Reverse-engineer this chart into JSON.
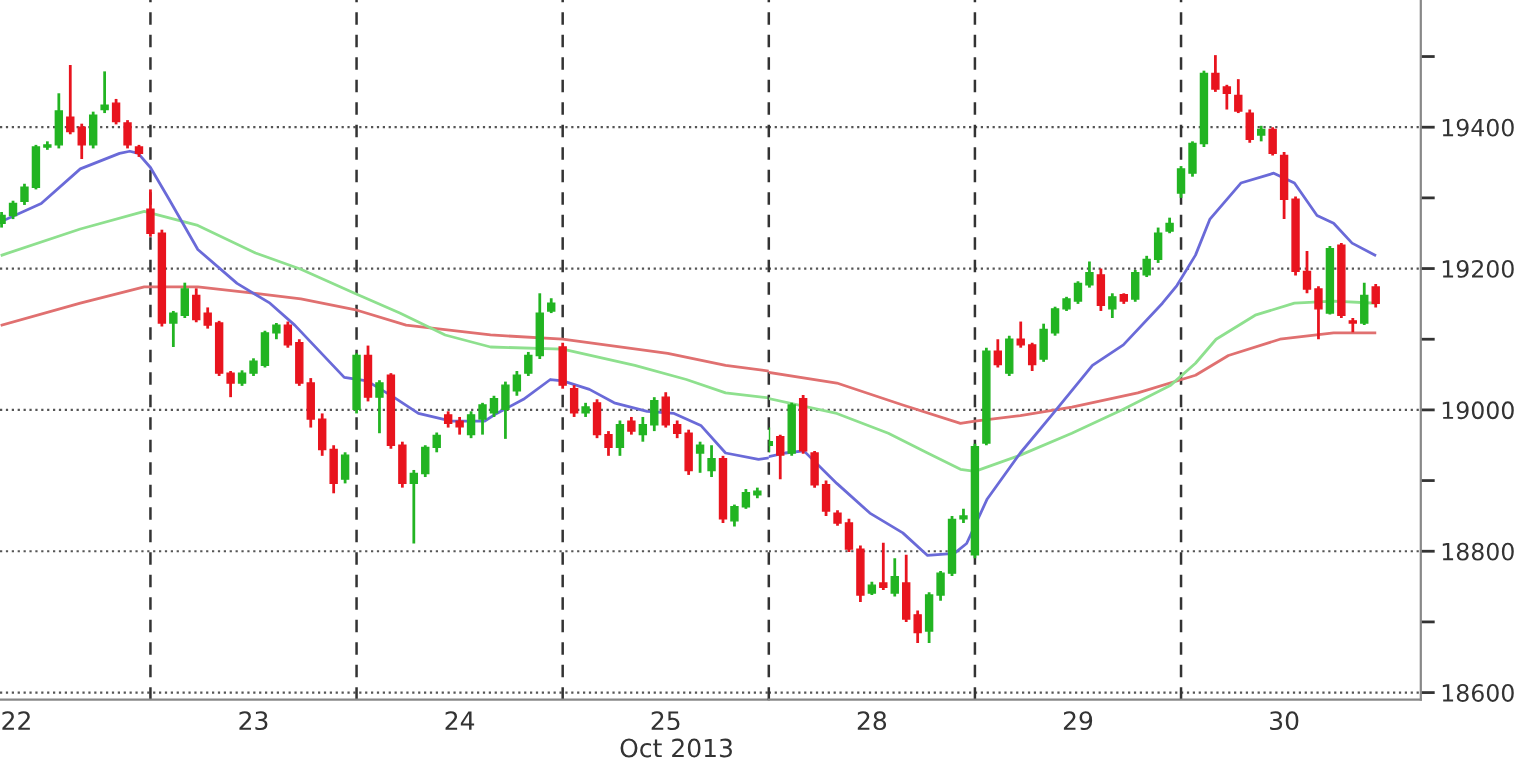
{
  "chart_data": [
    {
      "type": "candlestick",
      "xlabel": "Oct 2013",
      "xlim": [
        "2013-10-22T06:29",
        "2013-10-26T00:00"
      ],
      "ylim": [
        18590,
        19580
      ],
      "xticks": [
        {
          "value": "2013-10-22T08:24",
          "label": "22"
        },
        {
          "value": "2013-10-23T12:00",
          "label": "23"
        },
        {
          "value": "2013-10-24T12:00",
          "label": "24"
        },
        {
          "value": "2013-10-25T12:00",
          "label": "25"
        }
      ],
      "yticks": [
        18600,
        18800,
        19000,
        19200,
        19400
      ],
      "tick_labels": "x",
      "grid": "y",
      "ref_lines": [
        {
          "axis": "x",
          "value": "2013-10-23",
          "color": "#333333",
          "line_style": "dashed"
        },
        {
          "axis": "x",
          "value": "2013-10-24",
          "color": "#333333",
          "line_style": "dashed"
        },
        {
          "axis": "x",
          "value": "2013-10-25",
          "color": "#333333",
          "line_style": "dashed"
        }
      ],
      "series": [
        {
          "type": "line",
          "color": "#e07070",
          "x": [
            "2013-10-22T06:43",
            "2013-10-22T15:50",
            "2013-10-22T23:17",
            "2013-10-23T05:31",
            "2013-10-23T12:14",
            "2013-10-23T17:31",
            "2013-10-23T23:46",
            "2013-10-24T05:46",
            "2013-10-24T15:36",
            "2013-10-25T00:00",
            "2013-10-25T12:14",
            "2013-10-25T18:58",
            "2013-10-26T00:00"
          ],
          "values": [
            19120,
            19151,
            19174,
            19174,
            19165,
            19157,
            19142,
            19120,
            19106,
            19100,
            19080,
            19063,
            19055
          ]
        },
        {
          "type": "line",
          "color": "#8ee08e",
          "x": [
            "2013-10-22T06:43",
            "2013-10-22T15:50",
            "2013-10-22T23:17",
            "2013-10-23T05:31",
            "2013-10-23T12:14",
            "2013-10-23T17:31",
            "2013-10-23T23:46",
            "2013-10-24T05:02",
            "2013-10-24T10:19",
            "2013-10-24T15:36",
            "2013-10-25T00:00",
            "2013-10-25T08:24",
            "2013-10-25T14:24",
            "2013-10-25T18:58",
            "2013-10-26T00:00"
          ],
          "values": [
            19219,
            19256,
            19281,
            19261,
            19222,
            19199,
            19165,
            19137,
            19106,
            19089,
            19086,
            19063,
            19043,
            19024,
            19017
          ]
        },
        {
          "type": "line",
          "color": "#6a6ad8",
          "x": [
            "2013-10-22T06:43",
            "2013-10-22T11:17",
            "2013-10-22T15:50",
            "2013-10-22T20:24",
            "2013-10-22T21:36",
            "2013-10-22T22:34",
            "2013-10-23T00:00",
            "2013-10-23T02:10",
            "2013-10-23T05:31",
            "2013-10-23T10:05",
            "2013-10-23T13:55",
            "2013-10-23T16:48",
            "2013-10-23T19:55",
            "2013-10-23T22:34",
            "2013-10-24T01:12",
            "2013-10-24T04:19",
            "2013-10-24T07:12",
            "2013-10-24T11:02",
            "2013-10-24T14:53",
            "2013-10-24T16:19",
            "2013-10-24T19:26",
            "2013-10-24T22:34",
            "2013-10-25T00:00",
            "2013-10-25T03:07",
            "2013-10-25T06:00",
            "2013-10-25T09:50",
            "2013-10-25T12:58",
            "2013-10-25T16:05",
            "2013-10-25T18:58",
            "2013-10-25T22:48",
            "2013-10-26T00:00"
          ],
          "values": [
            19267,
            19292,
            19341,
            19363,
            19366,
            19363,
            19343,
            19298,
            19227,
            19179,
            19151,
            19120,
            19080,
            19046,
            19041,
            19018,
            18995,
            18984,
            18984,
            18995,
            19015,
            19043,
            19041,
            19029,
            19010,
            18998,
            18995,
            18978,
            18939,
            18930,
            18932
          ]
        },
        {
          "color": "#22b422",
          "x": [
            "2013-10-22T06:40",
            "2013-10-22T08:00",
            "2013-10-22T09:20",
            "2013-10-22T10:40",
            "2013-10-22T12:00",
            "2013-10-22T13:20",
            "2013-10-22T17:20",
            "2013-10-22T18:40",
            "2013-10-23T02:40",
            "2013-10-23T04:00",
            "2013-10-23T10:40",
            "2013-10-23T12:00",
            "2013-10-23T13:20",
            "2013-10-23T14:40",
            "2013-10-23T22:40",
            "2013-10-24T00:00",
            "2013-10-24T02:40",
            "2013-10-24T06:40",
            "2013-10-24T08:00",
            "2013-10-24T09:20",
            "2013-10-24T13:20",
            "2013-10-24T14:40",
            "2013-10-24T16:00",
            "2013-10-24T17:20",
            "2013-10-24T18:40",
            "2013-10-24T20:00",
            "2013-10-24T21:20",
            "2013-10-24T22:40",
            "2013-10-25T02:40",
            "2013-10-25T06:40",
            "2013-10-25T09:20",
            "2013-10-25T10:40",
            "2013-10-25T16:00",
            "2013-10-25T17:20",
            "2013-10-25T20:00",
            "2013-10-25T21:20",
            "2013-10-25T22:40"
          ],
          "ohlc": [
            [
              19264,
              19280,
              19258,
              19275
            ],
            [
              19275,
              19296,
              19270,
              19292
            ],
            [
              19295,
              19320,
              19290,
              19315
            ],
            [
              19315,
              19375,
              19312,
              19372
            ],
            [
              19372,
              19380,
              19368,
              19375
            ],
            [
              19375,
              19448,
              19370,
              19423
            ],
            [
              19375,
              19422,
              19370,
              19417
            ],
            [
              19425,
              19479,
              19420,
              19431
            ],
            [
              19123,
              19140,
              19089,
              19137
            ],
            [
              19134,
              19180,
              19130,
              19171
            ],
            [
              19038,
              19056,
              19034,
              19052
            ],
            [
              19052,
              19073,
              19048,
              19069
            ],
            [
              19063,
              19112,
              19060,
              19109
            ],
            [
              19109,
              19123,
              19100,
              19120
            ],
            [
              18902,
              18940,
              18896,
              18936
            ],
            [
              19001,
              19080,
              18995,
              19077
            ],
            [
              19018,
              19042,
              18967,
              19038
            ],
            [
              18896,
              18915,
              18811,
              18910
            ],
            [
              18910,
              18950,
              18905,
              18947
            ],
            [
              18947,
              18968,
              18940,
              18964
            ],
            [
              18965,
              18998,
              18960,
              18993
            ],
            [
              18987,
              19010,
              18965,
              19007
            ],
            [
              18996,
              19020,
              18990,
              19016
            ],
            [
              19001,
              19040,
              18959,
              19035
            ],
            [
              19027,
              19055,
              19020,
              19049
            ],
            [
              19052,
              19082,
              19048,
              19077
            ],
            [
              19077,
              19165,
              19072,
              19137
            ],
            [
              19140,
              19158,
              19137,
              19151
            ],
            [
              18996,
              19010,
              18990,
              19004
            ],
            [
              18947,
              18985,
              18935,
              18979
            ],
            [
              18965,
              18990,
              18955,
              18979
            ],
            [
              18979,
              19018,
              18970,
              19013
            ],
            [
              18939,
              18955,
              18911,
              18950
            ],
            [
              18914,
              18950,
              18905,
              18931
            ],
            [
              18843,
              18866,
              18835,
              18863
            ],
            [
              18863,
              18888,
              18860,
              18883
            ],
            [
              18880,
              18890,
              18875,
              18885
            ]
          ]
        },
        {
          "color": "#e8141e",
          "x": [
            "2013-10-22T14:40",
            "2013-10-22T16:00",
            "2013-10-22T20:00",
            "2013-10-22T21:20",
            "2013-10-22T22:40",
            "2013-10-23T00:00",
            "2013-10-23T01:20",
            "2013-10-23T05:20",
            "2013-10-23T06:40",
            "2013-10-23T08:00",
            "2013-10-23T09:20",
            "2013-10-23T16:00",
            "2013-10-23T17:20",
            "2013-10-23T18:40",
            "2013-10-23T20:00",
            "2013-10-23T21:20",
            "2013-10-24T01:20",
            "2013-10-24T04:00",
            "2013-10-24T05:20",
            "2013-10-24T10:40",
            "2013-10-24T12:00",
            "2013-10-25T00:00",
            "2013-10-25T01:20",
            "2013-10-25T04:00",
            "2013-10-25T05:20",
            "2013-10-25T08:00",
            "2013-10-25T12:00",
            "2013-10-25T13:20",
            "2013-10-25T14:40",
            "2013-10-25T18:40"
          ],
          "ohlc": [
            [
              19414,
              19488,
              19390,
              19394
            ],
            [
              19400,
              19405,
              19355,
              19375
            ],
            [
              19434,
              19440,
              19404,
              19408
            ],
            [
              19406,
              19410,
              19370,
              19375
            ],
            [
              19372,
              19375,
              19358,
              19363
            ],
            [
              19284,
              19312,
              19245,
              19250
            ],
            [
              19250,
              19255,
              19118,
              19123
            ],
            [
              19162,
              19172,
              19124,
              19128
            ],
            [
              19137,
              19145,
              19115,
              19120
            ],
            [
              19123,
              19126,
              19048,
              19052
            ],
            [
              19052,
              19055,
              19018,
              19038
            ],
            [
              19120,
              19125,
              19088,
              19092
            ],
            [
              19095,
              19100,
              19034,
              19038
            ],
            [
              19038,
              19045,
              18975,
              18987
            ],
            [
              18987,
              18995,
              18935,
              18944
            ],
            [
              18944,
              18950,
              18882,
              18896
            ],
            [
              19077,
              19091,
              19012,
              19018
            ],
            [
              19049,
              19052,
              18945,
              18950
            ],
            [
              18950,
              18955,
              18890,
              18896
            ],
            [
              18993,
              18998,
              18975,
              18981
            ],
            [
              18984,
              18990,
              18965,
              18976
            ],
            [
              19089,
              19095,
              19030,
              19035
            ],
            [
              19030,
              19035,
              18990,
              18996
            ],
            [
              19010,
              19015,
              18960,
              18965
            ],
            [
              18965,
              18970,
              18935,
              18947
            ],
            [
              18984,
              18990,
              18965,
              18970
            ],
            [
              19018,
              19025,
              18975,
              18979
            ],
            [
              18979,
              18985,
              18960,
              18967
            ],
            [
              18967,
              18972,
              18908,
              18914
            ],
            [
              18931,
              18935,
              18840,
              18846
            ]
          ]
        }
      ]
    },
    {
      "type": "candlestick",
      "xlim": [
        "2013-10-28T00:00",
        "2013-10-31T03:55"
      ],
      "ylim": [
        18590,
        19580
      ],
      "xticks": [
        {
          "value": "2013-10-28T12:00",
          "label": "28"
        },
        {
          "value": "2013-10-29T12:00",
          "label": "29"
        },
        {
          "value": "2013-10-30T12:00",
          "label": "30"
        }
      ],
      "yticks": [
        18600,
        {
          "value": 18700,
          "label": null
        },
        18800,
        {
          "value": 18900,
          "label": null
        },
        19000,
        {
          "value": 19100,
          "label": null
        },
        19200,
        {
          "value": 19300,
          "label": null
        },
        19400,
        {
          "value": 19500,
          "label": null
        }
      ],
      "grid": "y",
      "ref_lines": [
        {
          "axis": "x",
          "value": "2013-10-28",
          "color": "#333333",
          "line_style": "dashed"
        },
        {
          "axis": "x",
          "value": "2013-10-29",
          "color": "#333333",
          "line_style": "dashed"
        },
        {
          "axis": "x",
          "value": "2013-10-30",
          "color": "#333333",
          "line_style": "dashed"
        }
      ],
      "series": [
        {
          "type": "line",
          "color": "#e07070",
          "x": [
            "2013-10-28T00:00",
            "2013-10-28T07:55",
            "2013-10-28T15:36",
            "2013-10-28T22:19",
            "2013-10-29T00:00",
            "2013-10-29T05:17",
            "2013-10-29T11:17",
            "2013-10-29T18:58",
            "2013-10-30T01:41",
            "2013-10-30T05:31",
            "2013-10-30T11:31",
            "2013-10-30T17:46",
            "2013-10-30T22:34"
          ],
          "values": [
            19053,
            19038,
            19007,
            18981,
            18984,
            18992,
            19004,
            19024,
            19049,
            19077,
            19100,
            19109,
            19109
          ]
        },
        {
          "type": "line",
          "color": "#8ee08e",
          "x": [
            "2013-10-28T00:00",
            "2013-10-28T07:55",
            "2013-10-28T13:55",
            "2013-10-28T18:29",
            "2013-10-28T22:19",
            "2013-10-29T00:00",
            "2013-10-29T05:17",
            "2013-10-29T11:17",
            "2013-10-29T17:17",
            "2013-10-29T22:48",
            "2013-10-30T01:41",
            "2013-10-30T04:05",
            "2013-10-30T08:38",
            "2013-10-30T13:12",
            "2013-10-30T17:46",
            "2013-10-30T22:34"
          ],
          "values": [
            19016,
            18995,
            18967,
            18939,
            18916,
            18913,
            18936,
            18967,
            19001,
            19035,
            19066,
            19100,
            19134,
            19151,
            19154,
            19151
          ]
        },
        {
          "type": "line",
          "color": "#6a6ad8",
          "x": [
            "2013-10-28T00:00",
            "2013-10-28T01:55",
            "2013-10-28T04:05",
            "2013-10-28T07:55",
            "2013-10-28T11:46",
            "2013-10-28T15:36",
            "2013-10-28T18:29",
            "2013-10-28T21:36",
            "2013-10-28T23:02",
            "2013-10-29T01:26",
            "2013-10-29T05:17",
            "2013-10-29T09:07",
            "2013-10-29T13:41",
            "2013-10-29T17:17",
            "2013-10-29T21:50",
            "2013-10-29T23:31",
            "2013-10-30T01:41",
            "2013-10-30T03:22",
            "2013-10-30T06:58",
            "2013-10-30T10:48",
            "2013-10-30T13:12",
            "2013-10-30T15:50",
            "2013-10-30T17:46",
            "2013-10-30T19:55",
            "2013-10-30T22:34"
          ],
          "values": [
            18934,
            18939,
            18942,
            18896,
            18854,
            18826,
            18794,
            18797,
            18811,
            18874,
            18939,
            18995,
            19063,
            19092,
            19151,
            19176,
            19219,
            19270,
            19321,
            19335,
            19321,
            19275,
            19264,
            19236,
            19219
          ]
        },
        {
          "color": "#22b422",
          "x": [
            "2013-10-28T00:00",
            "2013-10-28T02:40",
            "2013-10-28T12:00",
            "2013-10-28T14:40",
            "2013-10-28T18:40",
            "2013-10-28T20:00",
            "2013-10-28T21:20",
            "2013-10-28T22:40",
            "2013-10-29T00:00",
            "2013-10-29T01:20",
            "2013-10-29T04:00",
            "2013-10-29T08:00",
            "2013-10-29T09:20",
            "2013-10-29T10:40",
            "2013-10-29T12:00",
            "2013-10-29T13:20",
            "2013-10-29T16:00",
            "2013-10-29T18:40",
            "2013-10-29T20:00",
            "2013-10-29T21:20",
            "2013-10-29T22:40",
            "2013-10-30T00:00",
            "2013-10-30T01:20",
            "2013-10-30T02:40",
            "2013-10-30T09:20",
            "2013-10-30T17:20",
            "2013-10-30T21:20"
          ],
          "ohlc": [
            [
              18950,
              18975,
              18940,
              18955
            ],
            [
              18939,
              19010,
              18935,
              19007
            ],
            [
              18741,
              18757,
              18738,
              18752
            ],
            [
              18741,
              18790,
              18736,
              18764
            ],
            [
              18687,
              18742,
              18670,
              18738
            ],
            [
              18738,
              18772,
              18730,
              18769
            ],
            [
              18769,
              18850,
              18765,
              18845
            ],
            [
              18846,
              18860,
              18840,
              18850
            ],
            [
              18795,
              18952,
              18790,
              18948
            ],
            [
              18953,
              19088,
              18950,
              19083
            ],
            [
              19052,
              19105,
              19048,
              19100
            ],
            [
              19072,
              19122,
              19068,
              19114
            ],
            [
              19109,
              19146,
              19105,
              19143
            ],
            [
              19143,
              19160,
              19140,
              19157
            ],
            [
              19154,
              19182,
              19150,
              19179
            ],
            [
              19177,
              19210,
              19173,
              19194
            ],
            [
              19143,
              19165,
              19130,
              19160
            ],
            [
              19157,
              19198,
              19153,
              19194
            ],
            [
              19191,
              19218,
              19188,
              19213
            ],
            [
              19213,
              19258,
              19208,
              19250
            ],
            [
              19253,
              19272,
              19250,
              19264
            ],
            [
              19307,
              19345,
              19300,
              19341
            ],
            [
              19335,
              19380,
              19330,
              19377
            ],
            [
              19377,
              19480,
              19372,
              19476
            ],
            [
              19389,
              19402,
              19380,
              19397
            ],
            [
              19137,
              19232,
              19135,
              19228
            ],
            [
              19123,
              19180,
              19120,
              19162
            ]
          ]
        },
        {
          "color": "#e8141e",
          "x": [
            "2013-10-28T01:20",
            "2013-10-28T04:00",
            "2013-10-28T05:20",
            "2013-10-28T06:40",
            "2013-10-28T08:00",
            "2013-10-28T09:20",
            "2013-10-28T10:40",
            "2013-10-28T13:20",
            "2013-10-28T16:00",
            "2013-10-28T17:20",
            "2013-10-29T02:40",
            "2013-10-29T05:20",
            "2013-10-29T06:40",
            "2013-10-29T14:40",
            "2013-10-29T17:20",
            "2013-10-30T04:00",
            "2013-10-30T05:20",
            "2013-10-30T06:40",
            "2013-10-30T08:00",
            "2013-10-30T10:40",
            "2013-10-30T12:00",
            "2013-10-30T13:20",
            "2013-10-30T14:40",
            "2013-10-30T16:00",
            "2013-10-30T18:40",
            "2013-10-30T20:00",
            "2013-10-30T22:40"
          ],
          "ohlc": [
            [
              18962,
              18965,
              18902,
              18936
            ],
            [
              19016,
              19021,
              18938,
              18942
            ],
            [
              18939,
              18942,
              18890,
              18894
            ],
            [
              18894,
              18900,
              18850,
              18857
            ],
            [
              18854,
              18858,
              18836,
              18840
            ],
            [
              18840,
              18846,
              18799,
              18803
            ],
            [
              18803,
              18808,
              18728,
              18738
            ],
            [
              18755,
              18812,
              18745,
              18749
            ],
            [
              18755,
              18795,
              18700,
              18704
            ],
            [
              18710,
              18716,
              18670,
              18685
            ],
            [
              19083,
              19100,
              19060,
              19064
            ],
            [
              19100,
              19125,
              19088,
              19092
            ],
            [
              19092,
              19095,
              19055,
              19064
            ],
            [
              19191,
              19200,
              19140,
              19148
            ],
            [
              19163,
              19165,
              19150,
              19154
            ],
            [
              19476,
              19502,
              19450,
              19454
            ],
            [
              19457,
              19460,
              19425,
              19448
            ],
            [
              19445,
              19468,
              19420,
              19423
            ],
            [
              19420,
              19425,
              19378,
              19383
            ],
            [
              19397,
              19400,
              19360,
              19363
            ],
            [
              19360,
              19365,
              19270,
              19298
            ],
            [
              19298,
              19302,
              19190,
              19196
            ],
            [
              19196,
              19225,
              19165,
              19171
            ],
            [
              19171,
              19175,
              19100,
              19143
            ],
            [
              19233,
              19236,
              19130,
              19134
            ],
            [
              19126,
              19130,
              19110,
              19123
            ],
            [
              19174,
              19178,
              19145,
              19151
            ]
          ]
        }
      ]
    }
  ]
}
